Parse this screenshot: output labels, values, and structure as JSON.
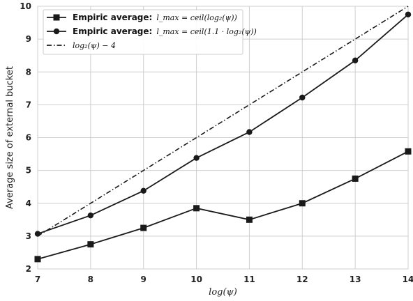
{
  "chart_data": {
    "type": "line",
    "xlabel": "log(ψ)",
    "ylabel": "Average size of external bucket",
    "xlim": [
      7,
      14
    ],
    "ylim": [
      2,
      10
    ],
    "grid": true,
    "legend_position": "top-left",
    "x_ticks": [
      "7",
      "8",
      "9",
      "10",
      "11",
      "12",
      "13",
      "14"
    ],
    "y_ticks": [
      "2",
      "3",
      "4",
      "5",
      "6",
      "7",
      "8",
      "9",
      "10"
    ],
    "x": [
      7,
      8,
      9,
      10,
      11,
      12,
      13,
      14
    ],
    "series": [
      {
        "name": "Empiric average: l_max = ceil(log2(ψ))",
        "legend_bold": "Empiric average:",
        "legend_math": "l_max = ceil(log₂(ψ))",
        "marker": "square",
        "line": "solid",
        "color": "#1a1a1a",
        "values": [
          2.3,
          2.75,
          3.25,
          3.85,
          3.5,
          4.0,
          4.75,
          5.58
        ]
      },
      {
        "name": "Empiric average: l_max = ceil(1.1·log2(ψ))",
        "legend_bold": "Empiric average:",
        "legend_math": "l_max = ceil(1.1 · log₂(ψ))",
        "marker": "circle",
        "line": "solid",
        "color": "#1a1a1a",
        "values": [
          3.07,
          3.63,
          4.38,
          5.38,
          6.17,
          7.22,
          8.35,
          9.75
        ]
      },
      {
        "name": "log2(ψ) − 4",
        "legend_bold": "",
        "legend_math": "log₂(ψ) − 4",
        "marker": "none",
        "line": "dashdot",
        "color": "#1a1a1a",
        "values": [
          3,
          4,
          5,
          6,
          7,
          8,
          9,
          10
        ]
      }
    ]
  }
}
